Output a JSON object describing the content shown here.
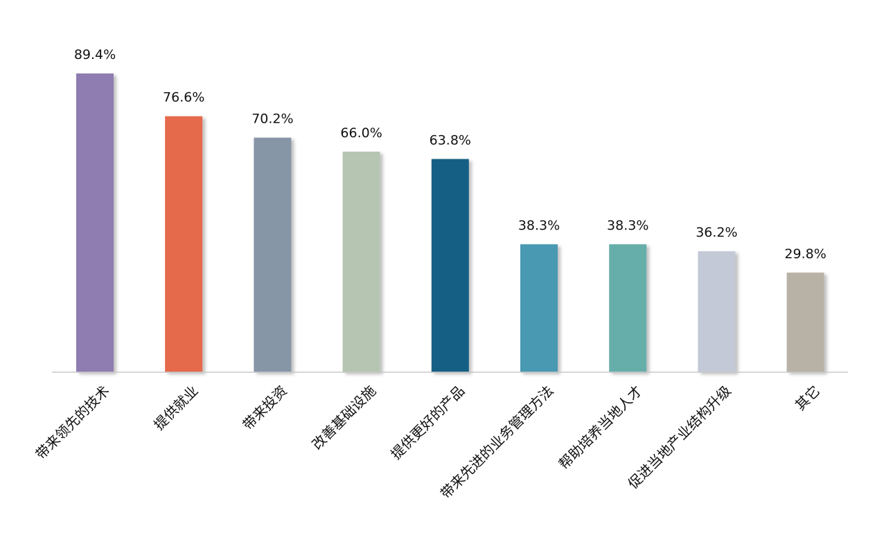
{
  "chart_data": {
    "type": "bar",
    "title": "",
    "xlabel": "",
    "ylabel": "",
    "ylim": [
      0,
      100
    ],
    "grid": false,
    "categories": [
      "带来领先的技术",
      "提供就业",
      "带来投资",
      "改善基础设施",
      "提供更好的产品",
      "带来先进的业务管理方法",
      "帮助培养当地人才",
      "促进当地产业结构升级",
      "其它"
    ],
    "values": [
      89.4,
      76.6,
      70.2,
      66.0,
      63.8,
      38.3,
      38.3,
      36.2,
      29.8
    ],
    "value_labels": [
      "89.4%",
      "76.6%",
      "70.2%",
      "66.0%",
      "63.8%",
      "38.3%",
      "38.3%",
      "36.2%",
      "29.8%"
    ],
    "colors": [
      "#8f7bb0",
      "#e5694b",
      "#8796a6",
      "#b5c5b1",
      "#175e84",
      "#4a99b3",
      "#66aeaa",
      "#c3c9d7",
      "#b8b1a5"
    ],
    "axis_color": "#c8c8c8"
  }
}
